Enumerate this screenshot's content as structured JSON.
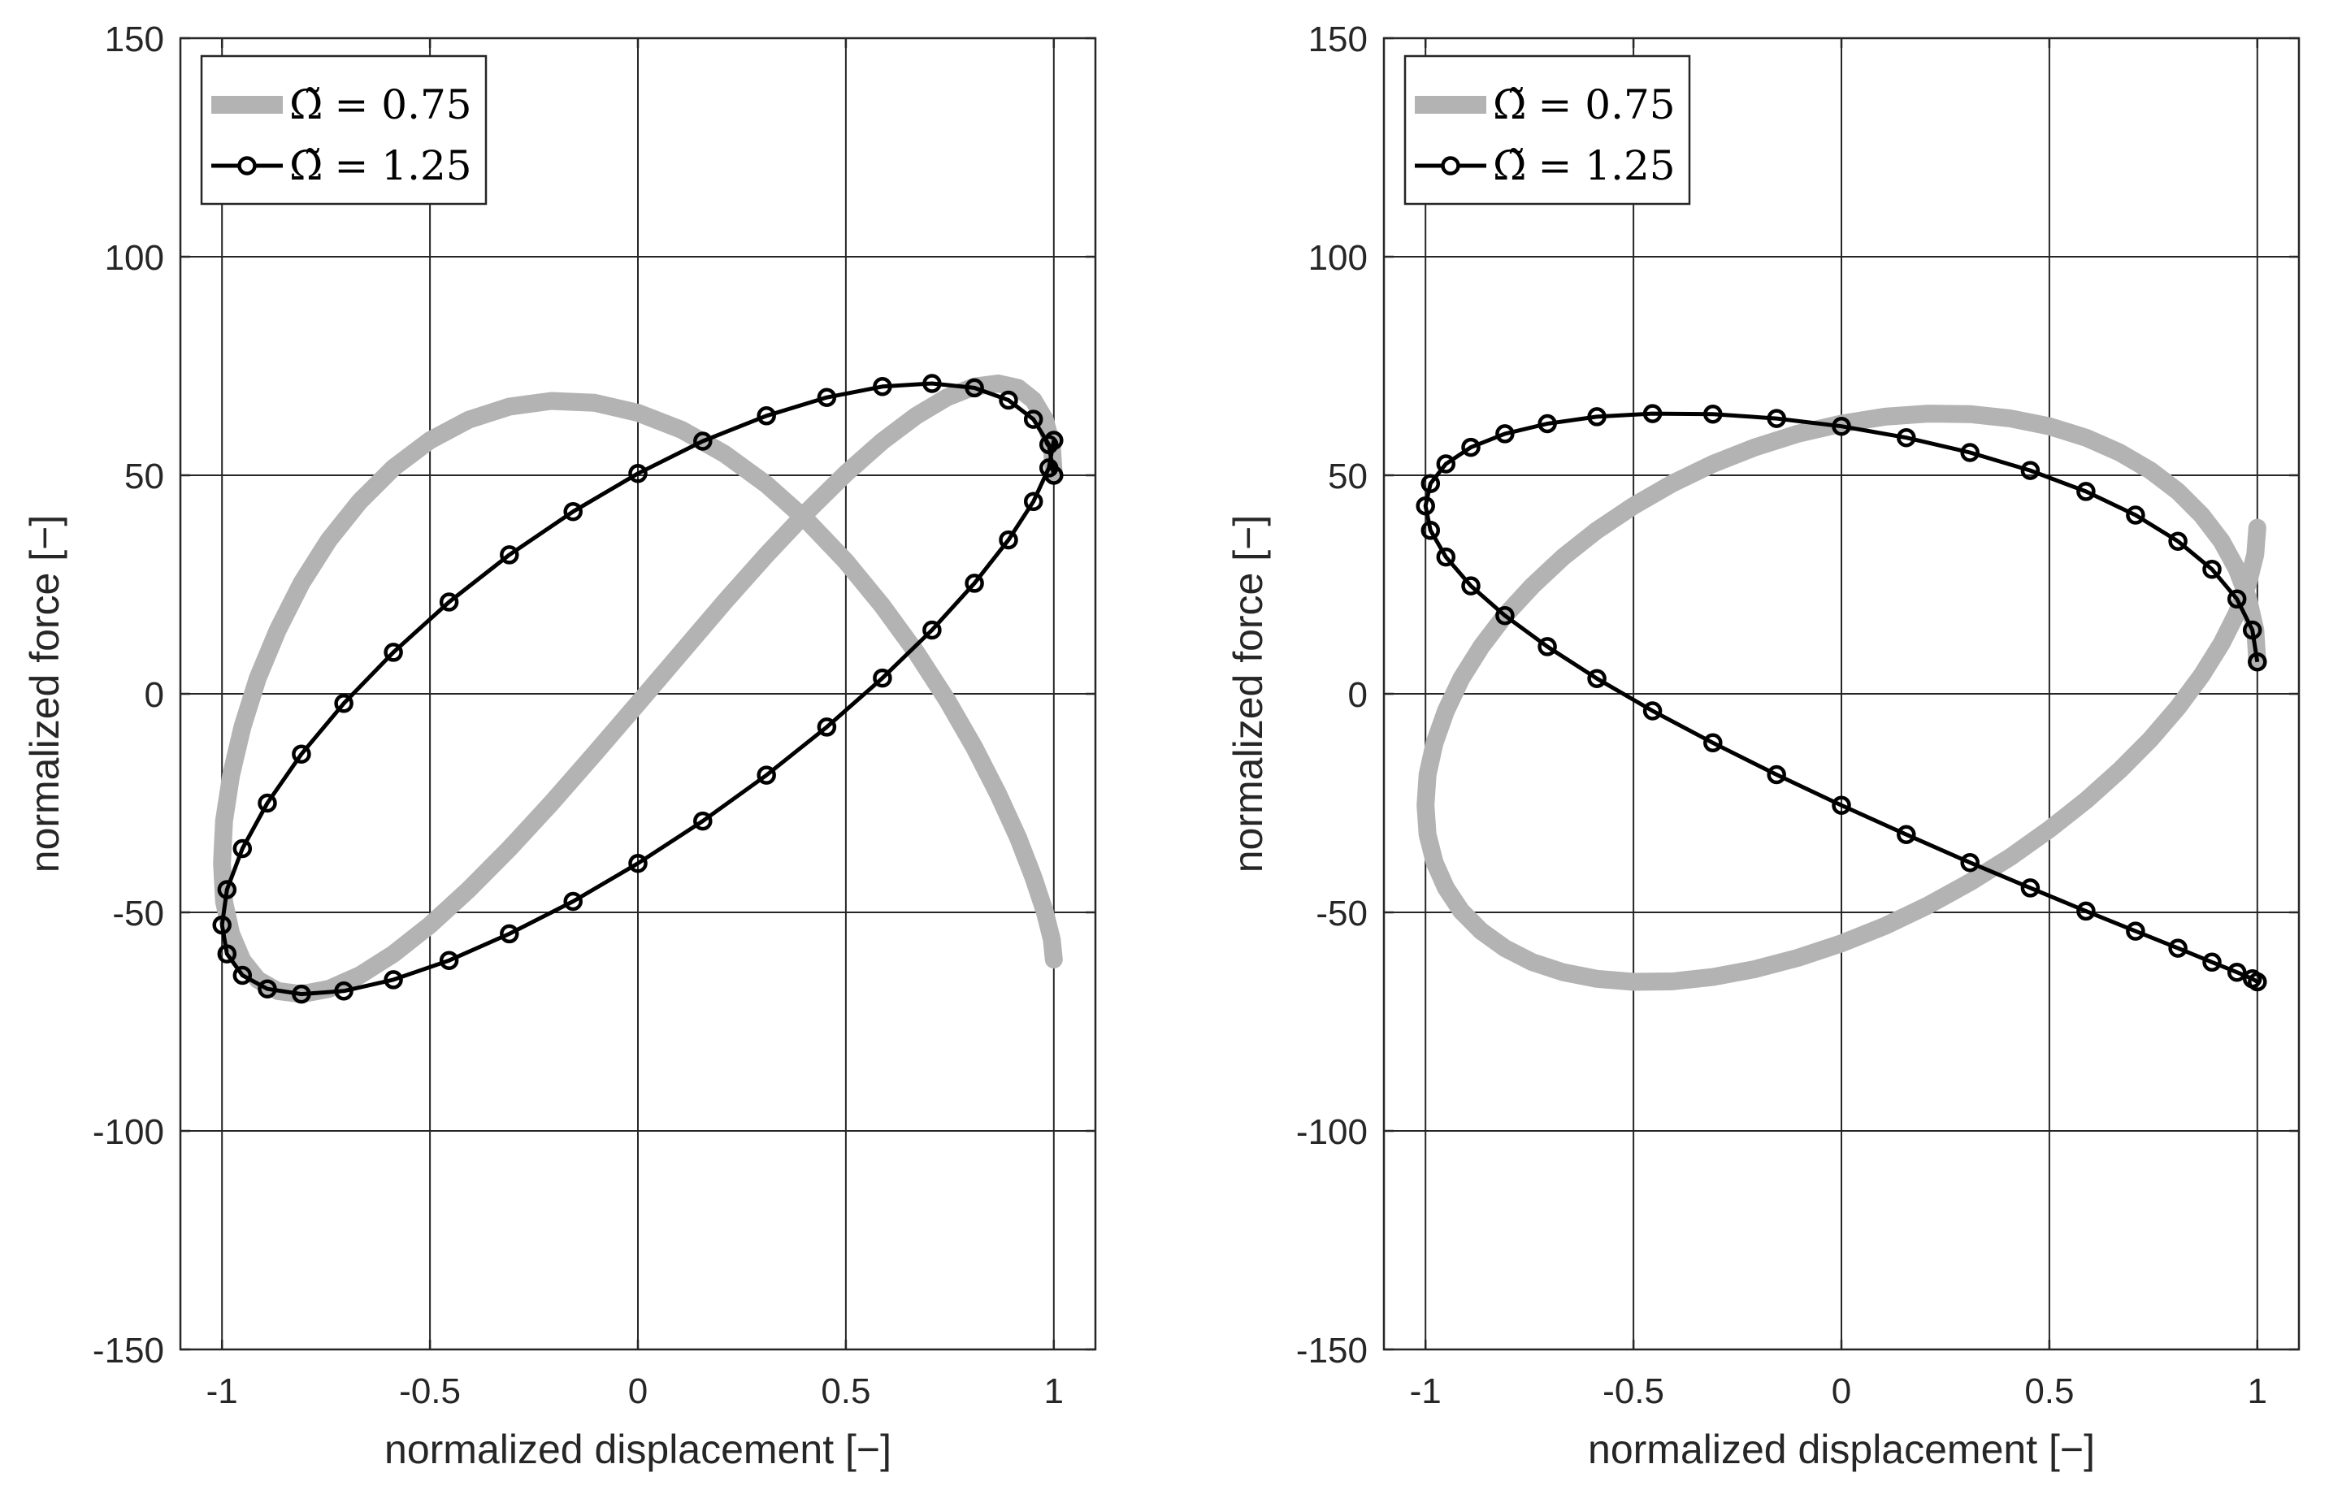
{
  "chart_data": [
    {
      "type": "line",
      "xlabel": "normalized displacement [−]",
      "ylabel": "normalized force [−]",
      "xlim": [
        -1.1,
        1.1
      ],
      "ylim": [
        -150,
        150
      ],
      "xticks": [
        -1,
        -0.5,
        0,
        0.5,
        1
      ],
      "xtick_labels": [
        "-1",
        "-0.5",
        "0",
        "0.5",
        "1"
      ],
      "yticks": [
        -150,
        -100,
        -50,
        0,
        50,
        100,
        150
      ],
      "ytick_labels": [
        "-150",
        "-100",
        "-50",
        "0",
        "50",
        "100",
        "150"
      ],
      "grid": true,
      "legend_position": "top-left",
      "series": [
        {
          "name": "Ω̃ = 0.75",
          "legend_symbol": "Ω̃",
          "legend_text": "= 0.75",
          "style": "thick-gray",
          "color": "#b3b3b3",
          "marker": "none",
          "x": [
            1.0,
            0.995,
            0.978,
            0.951,
            0.914,
            0.866,
            0.809,
            0.743,
            0.669,
            0.588,
            0.5,
            0.407,
            0.309,
            0.208,
            0.105,
            0.0,
            -0.105,
            -0.208,
            -0.309,
            -0.407,
            -0.5,
            -0.588,
            -0.669,
            -0.743,
            -0.809,
            -0.866,
            -0.914,
            -0.951,
            -0.978,
            -0.995,
            -1.0,
            -0.995,
            -0.978,
            -0.951,
            -0.914,
            -0.866,
            -0.809,
            -0.743,
            -0.669,
            -0.588,
            -0.5,
            -0.407,
            -0.309,
            -0.208,
            -0.105,
            0.0,
            0.105,
            0.208,
            0.309,
            0.407,
            0.5,
            0.588,
            0.669,
            0.743,
            0.809,
            0.866,
            0.914,
            0.951,
            0.978,
            0.995,
            1.0
          ],
          "y": [
            50.0,
            57.0,
            62.8,
            67.2,
            70.0,
            71.0,
            70.3,
            67.8,
            63.6,
            57.8,
            50.4,
            41.7,
            31.8,
            21.0,
            9.5,
            -2.2,
            -13.8,
            -25.0,
            -35.4,
            -44.8,
            -52.9,
            -59.5,
            -64.4,
            -67.5,
            -68.7,
            -68.0,
            -65.4,
            -61.0,
            -54.9,
            -47.5,
            -38.8,
            -29.1,
            -18.6,
            -7.6,
            3.6,
            14.6,
            25.3,
            35.2,
            44.0,
            51.7,
            58.0,
            62.7,
            65.7,
            67.0,
            66.6,
            64.3,
            60.4,
            54.9,
            47.9,
            39.6,
            30.3,
            20.1,
            9.5,
            -1.4,
            -12.3,
            -22.9,
            -32.9,
            -42.0,
            -49.8,
            -56.2,
            -60.8
          ]
        },
        {
          "name": "Ω̃ = 1.25",
          "legend_symbol": "Ω̃",
          "legend_text": "= 1.25",
          "style": "black-circles",
          "color": "#000000",
          "marker": "circle",
          "x": [
            1.0,
            0.988,
            0.951,
            0.891,
            0.809,
            0.707,
            0.588,
            0.454,
            0.309,
            0.156,
            0.0,
            -0.156,
            -0.309,
            -0.454,
            -0.588,
            -0.707,
            -0.809,
            -0.891,
            -0.951,
            -0.988,
            -1.0,
            -0.988,
            -0.951,
            -0.891,
            -0.809,
            -0.707,
            -0.588,
            -0.454,
            -0.309,
            -0.156,
            0.0,
            0.156,
            0.309,
            0.454,
            0.588,
            0.707,
            0.809,
            0.891,
            0.951,
            0.988,
            1.0
          ],
          "y": [
            50.0,
            57.0,
            62.8,
            67.2,
            70.0,
            71.0,
            70.3,
            67.8,
            63.6,
            57.8,
            50.4,
            41.7,
            31.8,
            21.0,
            9.5,
            -2.2,
            -13.8,
            -25.0,
            -35.4,
            -44.8,
            -52.9,
            -59.5,
            -64.4,
            -67.5,
            -68.7,
            -68.0,
            -65.4,
            -61.0,
            -54.9,
            -47.5,
            -38.8,
            -29.1,
            -18.6,
            -7.6,
            3.6,
            14.6,
            25.3,
            35.2,
            44.0,
            51.7,
            58.0
          ]
        }
      ]
    },
    {
      "type": "line",
      "xlabel": "normalized displacement [−]",
      "ylabel": "normalized force [−]",
      "xlim": [
        -1.1,
        1.1
      ],
      "ylim": [
        -150,
        150
      ],
      "xticks": [
        -1,
        -0.5,
        0,
        0.5,
        1
      ],
      "xtick_labels": [
        "-1",
        "-0.5",
        "0",
        "0.5",
        "1"
      ],
      "yticks": [
        -150,
        -100,
        -50,
        0,
        50,
        100,
        150
      ],
      "ytick_labels": [
        "-150",
        "-100",
        "-50",
        "0",
        "50",
        "100",
        "150"
      ],
      "grid": true,
      "legend_position": "top-left",
      "series": [
        {
          "name": "Ω̃ = 0.75",
          "legend_symbol": "Ω̃",
          "legend_text": "= 0.75",
          "style": "thick-gray",
          "color": "#b3b3b3",
          "marker": "none",
          "x": [
            1.0,
            0.995,
            0.978,
            0.951,
            0.914,
            0.866,
            0.809,
            0.743,
            0.669,
            0.588,
            0.5,
            0.407,
            0.309,
            0.208,
            0.105,
            0.0,
            -0.105,
            -0.208,
            -0.309,
            -0.407,
            -0.5,
            -0.588,
            -0.669,
            -0.743,
            -0.809,
            -0.866,
            -0.914,
            -0.951,
            -0.978,
            -0.995,
            -1.0,
            -0.995,
            -0.978,
            -0.951,
            -0.914,
            -0.866,
            -0.809,
            -0.743,
            -0.669,
            -0.588,
            -0.5,
            -0.407,
            -0.309,
            -0.208,
            -0.105,
            0.0,
            0.105,
            0.208,
            0.309,
            0.407,
            0.5,
            0.588,
            0.669,
            0.743,
            0.809,
            0.866,
            0.914,
            0.951,
            0.978,
            0.995,
            1.0
          ],
          "y": [
            7.3,
            14.6,
            21.7,
            28.5,
            34.9,
            40.9,
            46.3,
            51.1,
            55.2,
            58.6,
            61.2,
            63.0,
            64.0,
            64.1,
            63.4,
            61.8,
            59.5,
            56.4,
            52.6,
            48.1,
            43.0,
            37.4,
            31.3,
            24.7,
            17.9,
            10.8,
            3.5,
            -3.9,
            -11.2,
            -18.5,
            -25.5,
            -32.2,
            -38.6,
            -44.4,
            -49.7,
            -54.3,
            -58.2,
            -61.4,
            -63.7,
            -65.2,
            -65.9,
            -65.8,
            -64.8,
            -63.0,
            -60.4,
            -57.1,
            -53.1,
            -48.4,
            -43.1,
            -37.3,
            -31.0,
            -24.4,
            -17.5,
            -10.4,
            -3.1,
            4.2,
            11.5,
            18.5,
            25.4,
            31.9,
            38.0
          ]
        },
        {
          "name": "Ω̃ = 1.25",
          "legend_symbol": "Ω̃",
          "legend_text": "= 1.25",
          "style": "black-circles",
          "color": "#000000",
          "marker": "circle",
          "x": [
            1.0,
            0.988,
            0.951,
            0.891,
            0.809,
            0.707,
            0.588,
            0.454,
            0.309,
            0.156,
            0.0,
            -0.156,
            -0.309,
            -0.454,
            -0.588,
            -0.707,
            -0.809,
            -0.891,
            -0.951,
            -0.988,
            -1.0,
            -0.988,
            -0.951,
            -0.891,
            -0.809,
            -0.707,
            -0.588,
            -0.454,
            -0.309,
            -0.156,
            0.0,
            0.156,
            0.309,
            0.454,
            0.588,
            0.707,
            0.809,
            0.891,
            0.951,
            0.988,
            1.0
          ],
          "y": [
            7.3,
            14.6,
            21.7,
            28.5,
            34.9,
            40.9,
            46.3,
            51.1,
            55.2,
            58.6,
            61.2,
            63.0,
            64.0,
            64.1,
            63.4,
            61.8,
            59.5,
            56.4,
            52.6,
            48.1,
            43.0,
            37.4,
            31.3,
            24.7,
            17.9,
            10.8,
            3.5,
            -3.9,
            -11.2,
            -18.5,
            -25.5,
            -32.2,
            -38.6,
            -44.4,
            -49.7,
            -54.3,
            -58.2,
            -61.4,
            -63.7,
            -65.2,
            -65.9
          ]
        }
      ]
    }
  ]
}
